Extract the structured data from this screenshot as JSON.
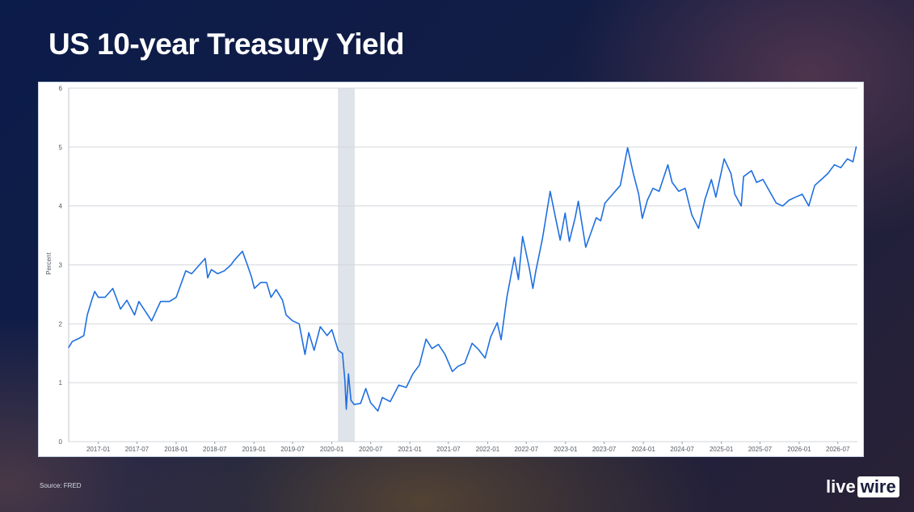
{
  "title": "US 10-year Treasury Yield",
  "source": "Source: FRED",
  "logo": {
    "part1": "live",
    "part2": "wire"
  },
  "colors": {
    "line": "#1f6fe0",
    "recession": "#dfe3ea",
    "grid": "#d3d6db",
    "panel_border": "#c9d5e6"
  },
  "chart_data": {
    "type": "line",
    "title": "",
    "ylabel": "Percent",
    "xlabel": "",
    "ylim": [
      0,
      6
    ],
    "yticks": [
      0,
      1,
      2,
      3,
      4,
      5,
      6
    ],
    "xlim": [
      "2016-08-15",
      "2026-10-01"
    ],
    "xticks": [
      "2017-01",
      "2017-07",
      "2018-01",
      "2018-07",
      "2019-01",
      "2019-07",
      "2020-01",
      "2020-07",
      "2021-01",
      "2021-07",
      "2022-01",
      "2022-07",
      "2023-01",
      "2023-07",
      "2024-01",
      "2024-07",
      "2025-01",
      "2025-07",
      "2026-01",
      "2026-07"
    ],
    "grid": "horizontal",
    "shaded_periods": [
      {
        "start": "2020-02-01",
        "end": "2020-04-15"
      }
    ],
    "series": [
      {
        "points": [
          [
            "2016-08-15",
            1.6
          ],
          [
            "2016-09-01",
            1.7
          ],
          [
            "2016-10-01",
            1.75
          ],
          [
            "2016-10-25",
            1.8
          ],
          [
            "2016-11-10",
            2.15
          ],
          [
            "2016-12-01",
            2.4
          ],
          [
            "2016-12-15",
            2.55
          ],
          [
            "2017-01-01",
            2.45
          ],
          [
            "2017-02-01",
            2.45
          ],
          [
            "2017-03-10",
            2.6
          ],
          [
            "2017-04-15",
            2.25
          ],
          [
            "2017-05-15",
            2.4
          ],
          [
            "2017-06-20",
            2.15
          ],
          [
            "2017-07-10",
            2.38
          ],
          [
            "2017-09-08",
            2.05
          ],
          [
            "2017-10-20",
            2.38
          ],
          [
            "2017-12-01",
            2.38
          ],
          [
            "2018-01-01",
            2.45
          ],
          [
            "2018-02-15",
            2.9
          ],
          [
            "2018-03-15",
            2.85
          ],
          [
            "2018-04-25",
            3.02
          ],
          [
            "2018-05-17",
            3.11
          ],
          [
            "2018-05-29",
            2.78
          ],
          [
            "2018-06-15",
            2.92
          ],
          [
            "2018-07-15",
            2.85
          ],
          [
            "2018-08-15",
            2.9
          ],
          [
            "2018-09-15",
            3.0
          ],
          [
            "2018-10-01",
            3.08
          ],
          [
            "2018-11-08",
            3.23
          ],
          [
            "2018-12-01",
            3.0
          ],
          [
            "2018-12-20",
            2.8
          ],
          [
            "2019-01-03",
            2.6
          ],
          [
            "2019-02-01",
            2.7
          ],
          [
            "2019-03-01",
            2.7
          ],
          [
            "2019-03-22",
            2.45
          ],
          [
            "2019-04-15",
            2.58
          ],
          [
            "2019-05-15",
            2.4
          ],
          [
            "2019-06-01",
            2.15
          ],
          [
            "2019-07-01",
            2.05
          ],
          [
            "2019-08-01",
            2.0
          ],
          [
            "2019-08-28",
            1.48
          ],
          [
            "2019-09-15",
            1.85
          ],
          [
            "2019-10-10",
            1.55
          ],
          [
            "2019-11-08",
            1.95
          ],
          [
            "2019-12-10",
            1.8
          ],
          [
            "2020-01-01",
            1.9
          ],
          [
            "2020-01-31",
            1.55
          ],
          [
            "2020-02-20",
            1.5
          ],
          [
            "2020-03-02",
            1.05
          ],
          [
            "2020-03-09",
            0.55
          ],
          [
            "2020-03-19",
            1.15
          ],
          [
            "2020-03-31",
            0.7
          ],
          [
            "2020-04-15",
            0.63
          ],
          [
            "2020-05-15",
            0.65
          ],
          [
            "2020-06-08",
            0.9
          ],
          [
            "2020-07-01",
            0.66
          ],
          [
            "2020-08-04",
            0.52
          ],
          [
            "2020-08-25",
            0.75
          ],
          [
            "2020-10-01",
            0.68
          ],
          [
            "2020-11-10",
            0.96
          ],
          [
            "2020-12-15",
            0.92
          ],
          [
            "2021-01-15",
            1.15
          ],
          [
            "2021-02-15",
            1.3
          ],
          [
            "2021-03-18",
            1.74
          ],
          [
            "2021-04-15",
            1.58
          ],
          [
            "2021-05-15",
            1.65
          ],
          [
            "2021-06-15",
            1.48
          ],
          [
            "2021-07-19",
            1.19
          ],
          [
            "2021-08-15",
            1.28
          ],
          [
            "2021-09-15",
            1.33
          ],
          [
            "2021-10-20",
            1.67
          ],
          [
            "2021-11-15",
            1.58
          ],
          [
            "2021-12-20",
            1.42
          ],
          [
            "2022-01-15",
            1.78
          ],
          [
            "2022-02-15",
            2.02
          ],
          [
            "2022-03-05",
            1.73
          ],
          [
            "2022-04-01",
            2.45
          ],
          [
            "2022-05-06",
            3.13
          ],
          [
            "2022-05-25",
            2.75
          ],
          [
            "2022-06-14",
            3.48
          ],
          [
            "2022-07-15",
            2.95
          ],
          [
            "2022-08-01",
            2.6
          ],
          [
            "2022-08-15",
            2.9
          ],
          [
            "2022-09-15",
            3.45
          ],
          [
            "2022-10-21",
            4.25
          ],
          [
            "2022-11-15",
            3.8
          ],
          [
            "2022-12-07",
            3.42
          ],
          [
            "2022-12-30",
            3.88
          ],
          [
            "2023-01-19",
            3.4
          ],
          [
            "2023-02-15",
            3.8
          ],
          [
            "2023-03-02",
            4.08
          ],
          [
            "2023-04-06",
            3.3
          ],
          [
            "2023-05-01",
            3.55
          ],
          [
            "2023-05-25",
            3.8
          ],
          [
            "2023-06-15",
            3.75
          ],
          [
            "2023-07-05",
            4.05
          ],
          [
            "2023-08-10",
            4.2
          ],
          [
            "2023-09-15",
            4.35
          ],
          [
            "2023-10-19",
            4.99
          ],
          [
            "2023-11-15",
            4.55
          ],
          [
            "2023-12-10",
            4.2
          ],
          [
            "2023-12-27",
            3.79
          ],
          [
            "2024-01-20",
            4.1
          ],
          [
            "2024-02-15",
            4.3
          ],
          [
            "2024-03-15",
            4.25
          ],
          [
            "2024-04-25",
            4.7
          ],
          [
            "2024-05-15",
            4.4
          ],
          [
            "2024-06-15",
            4.25
          ],
          [
            "2024-07-15",
            4.3
          ],
          [
            "2024-08-15",
            3.85
          ],
          [
            "2024-09-16",
            3.62
          ],
          [
            "2024-10-15",
            4.1
          ],
          [
            "2024-11-15",
            4.45
          ],
          [
            "2024-12-06",
            4.15
          ],
          [
            "2025-01-14",
            4.8
          ],
          [
            "2025-02-15",
            4.55
          ],
          [
            "2025-03-05",
            4.2
          ],
          [
            "2025-04-04",
            4.0
          ],
          [
            "2025-04-15",
            4.5
          ],
          [
            "2025-05-22",
            4.6
          ],
          [
            "2025-06-15",
            4.4
          ],
          [
            "2025-07-15",
            4.45
          ],
          [
            "2025-08-15",
            4.25
          ],
          [
            "2025-09-15",
            4.05
          ],
          [
            "2025-10-15",
            4.0
          ],
          [
            "2025-11-15",
            4.1
          ],
          [
            "2025-12-15",
            4.15
          ],
          [
            "2026-01-15",
            4.2
          ],
          [
            "2026-02-15",
            4.0
          ],
          [
            "2026-03-15",
            4.35
          ],
          [
            "2026-04-15",
            4.45
          ],
          [
            "2026-05-15",
            4.55
          ],
          [
            "2026-06-15",
            4.7
          ],
          [
            "2026-07-15",
            4.65
          ],
          [
            "2026-08-15",
            4.8
          ],
          [
            "2026-09-10",
            4.75
          ],
          [
            "2026-09-25",
            5.0
          ]
        ]
      }
    ]
  }
}
